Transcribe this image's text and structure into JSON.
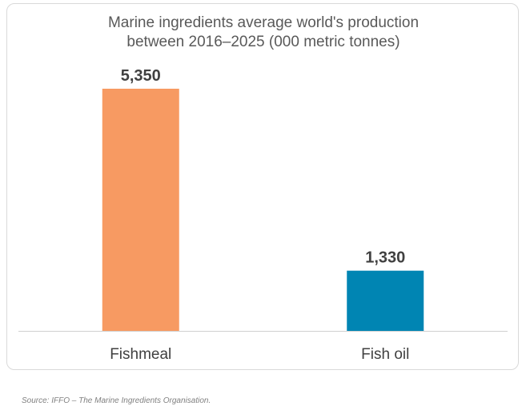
{
  "chart_data": {
    "type": "bar",
    "title_lines": [
      "Marine ingredients average world's production",
      "between 2016–2025 (000 metric tonnes)"
    ],
    "categories": [
      "Fishmeal",
      "Fish oil"
    ],
    "values": [
      5350,
      1330
    ],
    "value_labels": [
      "5,350",
      "1,330"
    ],
    "bar_colors": [
      "#F79A62",
      "#0085B3"
    ],
    "ylim": [
      0,
      5350
    ],
    "grid": false,
    "legend": "none"
  },
  "source": "Source: IFFO – The Marine Ingredients Organisation."
}
